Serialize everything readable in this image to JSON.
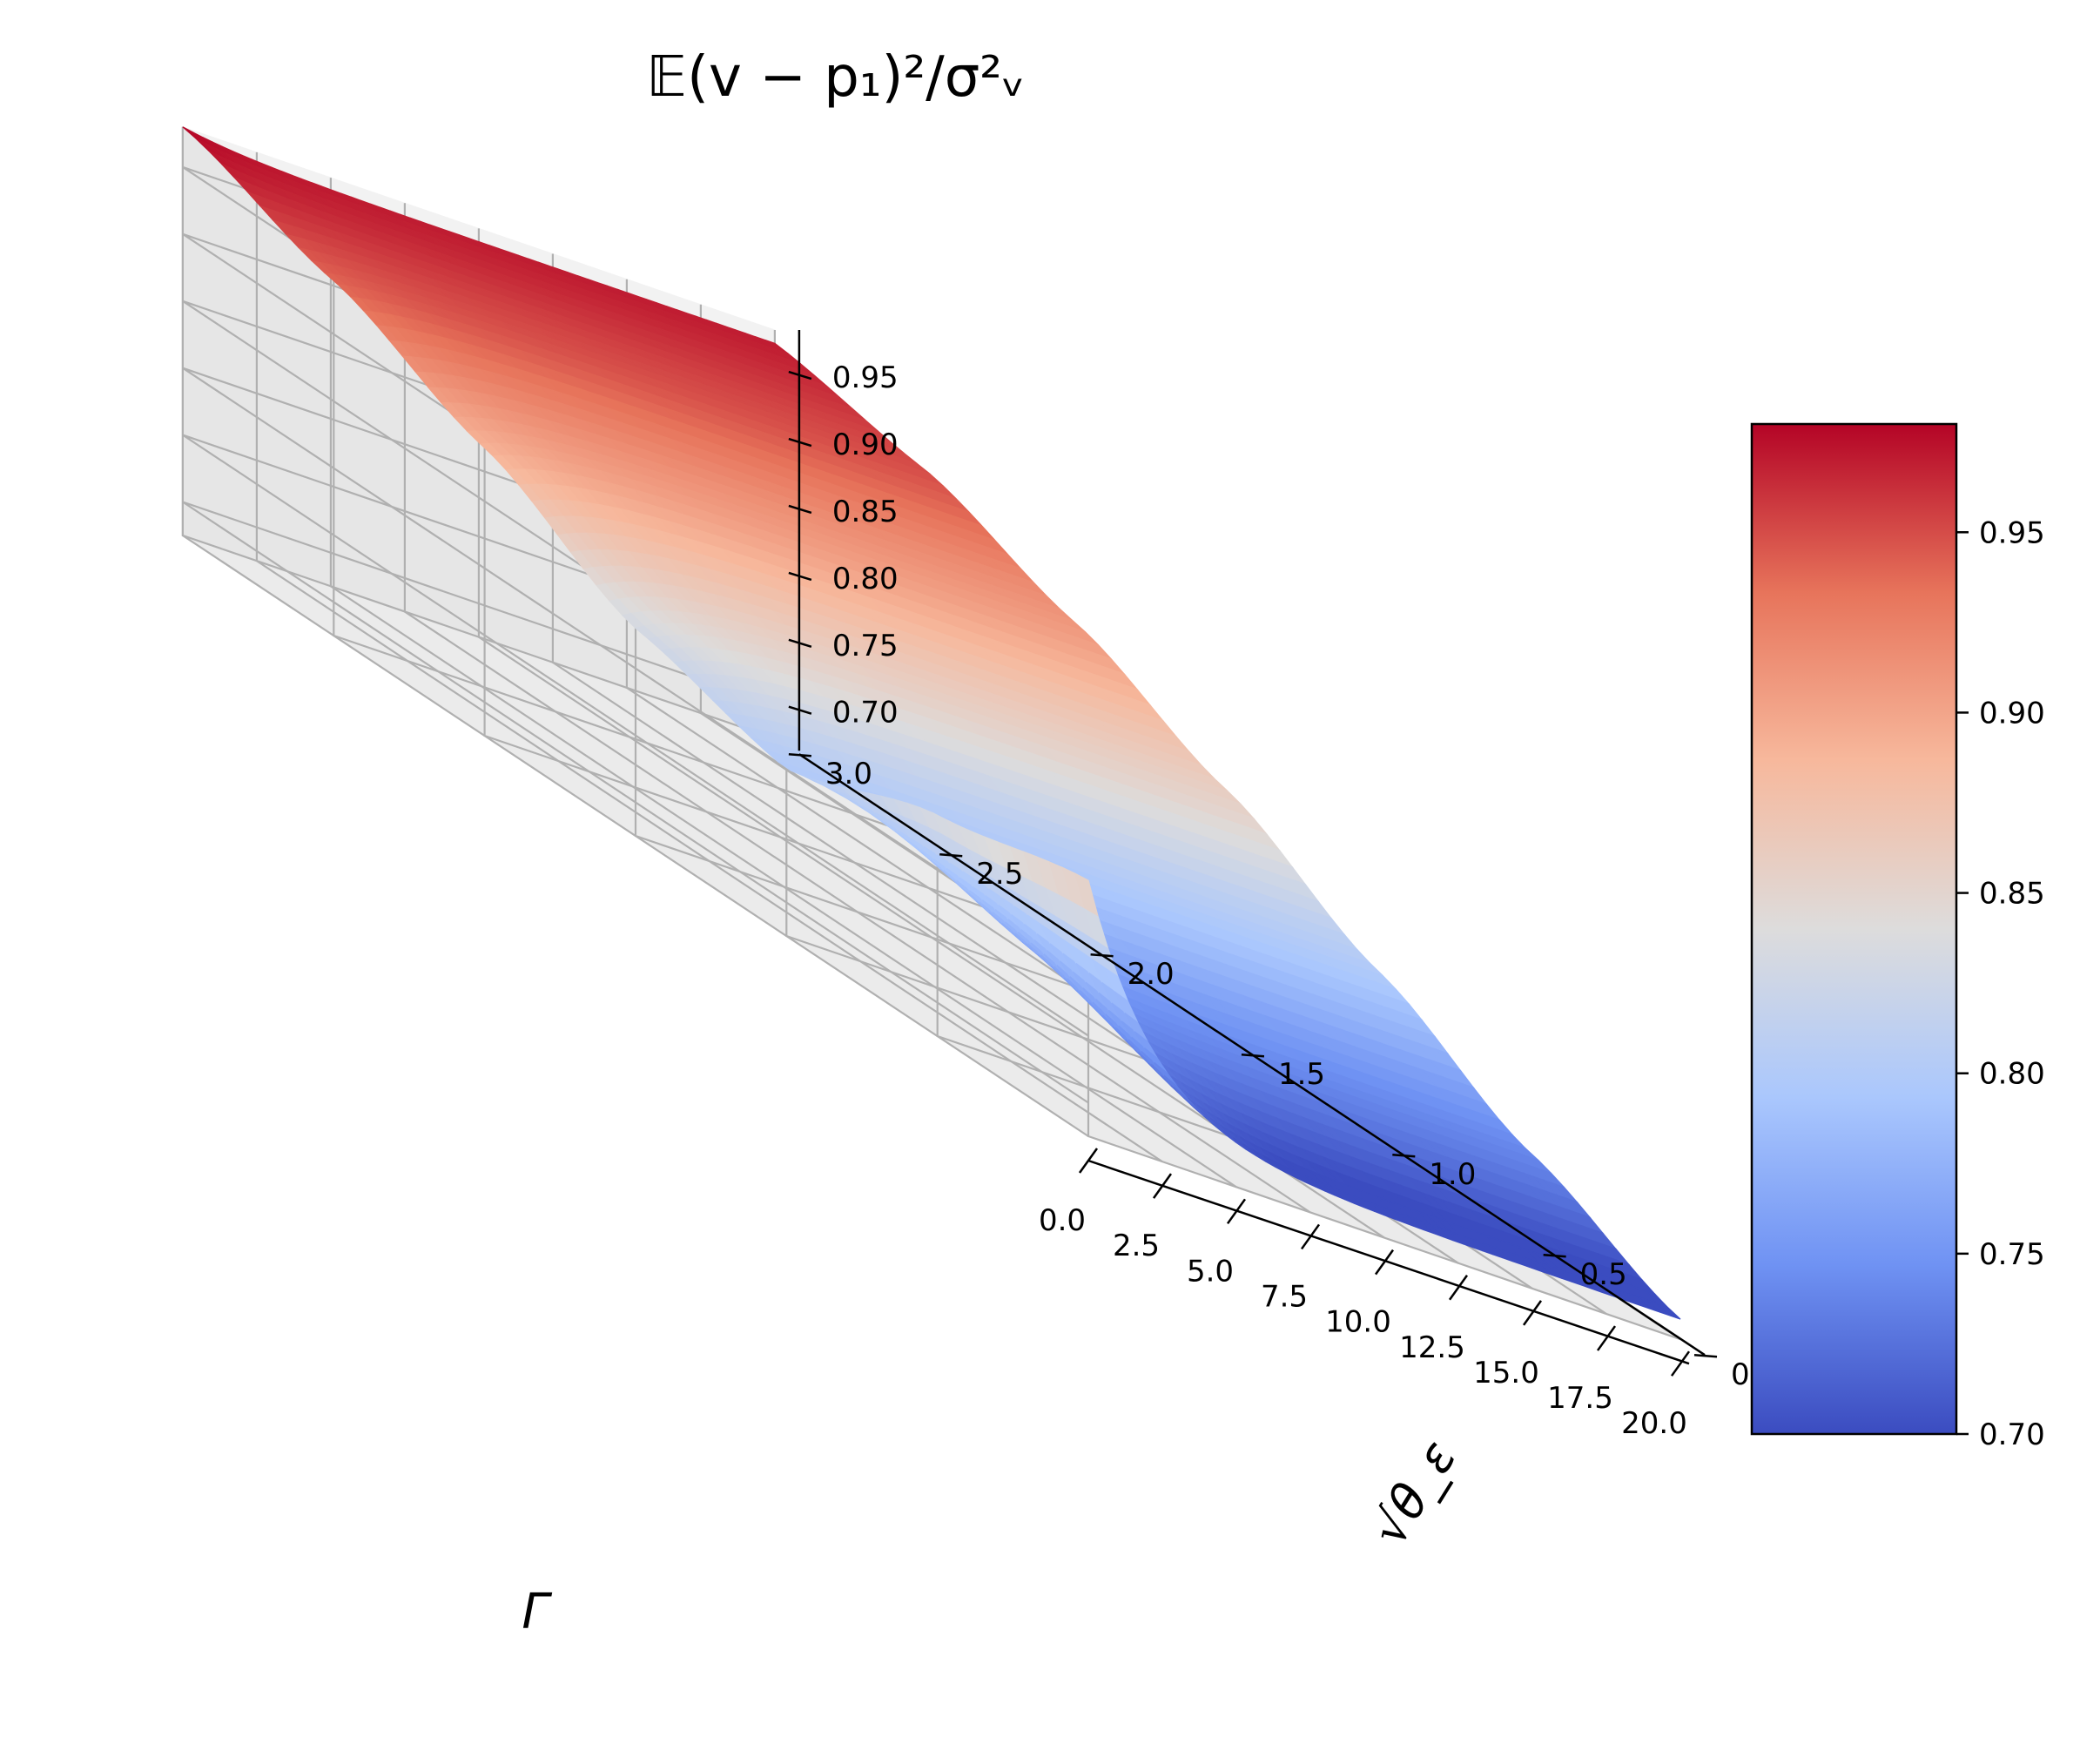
{
  "chart_data": {
    "type": "surface",
    "title": "𝔼(v − p₁)²/σ²ᵥ",
    "xlabel": "Γ",
    "ylabel": "√θ_ε",
    "x_ticks": [
      "0.0",
      "2.5",
      "5.0",
      "7.5",
      "10.0",
      "12.5",
      "15.0",
      "17.5",
      "20.0"
    ],
    "y_ticks": [
      "0.0",
      "0.5",
      "1.0",
      "1.5",
      "2.0",
      "2.5",
      "3.0"
    ],
    "z_ticks": [
      "0.70",
      "0.75",
      "0.80",
      "0.85",
      "0.90",
      "0.95"
    ],
    "colorbar_ticks": [
      "0.70",
      "0.75",
      "0.80",
      "0.85",
      "0.90",
      "0.95"
    ],
    "xlim": [
      0,
      20
    ],
    "ylim": [
      0,
      3
    ],
    "zlim": [
      0.675,
      0.98
    ],
    "colormap": "coolwarm",
    "clim": [
      0.7,
      0.98
    ],
    "grid": true,
    "colorbar_placement": "right",
    "surface_samples": {
      "sqrt_theta": [
        0.0,
        0.5,
        1.0,
        1.5,
        2.0,
        2.5,
        3.0
      ],
      "at_gamma_0": [
        0.866,
        0.84,
        0.8,
        0.83,
        0.89,
        0.94,
        0.98
      ],
      "at_gamma_20": [
        0.69,
        0.74,
        0.8,
        0.86,
        0.91,
        0.95,
        0.97
      ]
    },
    "colorbar_colors": [
      "#3b4cc0",
      "#6f92f3",
      "#aac7fd",
      "#dddcdc",
      "#f7b89c",
      "#e7745b",
      "#b40426"
    ]
  }
}
